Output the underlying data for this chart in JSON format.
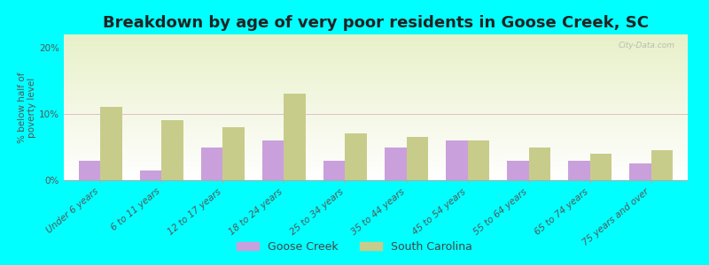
{
  "title": "Breakdown by age of very poor residents in Goose Creek, SC",
  "categories": [
    "Under 6 years",
    "6 to 11 years",
    "12 to 17 years",
    "18 to 24 years",
    "25 to 34 years",
    "35 to 44 years",
    "45 to 54 years",
    "55 to 64 years",
    "65 to 74 years",
    "75 years and over"
  ],
  "goose_creek": [
    3.0,
    1.5,
    5.0,
    6.0,
    3.0,
    5.0,
    6.0,
    3.0,
    3.0,
    2.5
  ],
  "south_carolina": [
    11.0,
    9.0,
    8.0,
    13.0,
    7.0,
    6.5,
    6.0,
    5.0,
    4.0,
    4.5
  ],
  "goose_creek_color": "#c9a0dc",
  "south_carolina_color": "#c8cc8a",
  "background_color": "#00ffff",
  "plot_bg_top": "#e8f0c8",
  "plot_bg_bottom": "#ffffff",
  "ylabel": "% below half of\npoverty level",
  "ylim": [
    0,
    22
  ],
  "yticks": [
    0,
    10,
    20
  ],
  "ytick_labels": [
    "0%",
    "10%",
    "20%"
  ],
  "bar_width": 0.35,
  "title_fontsize": 13,
  "axis_fontsize": 7.5,
  "legend_fontsize": 9,
  "watermark": "City-Data.com"
}
